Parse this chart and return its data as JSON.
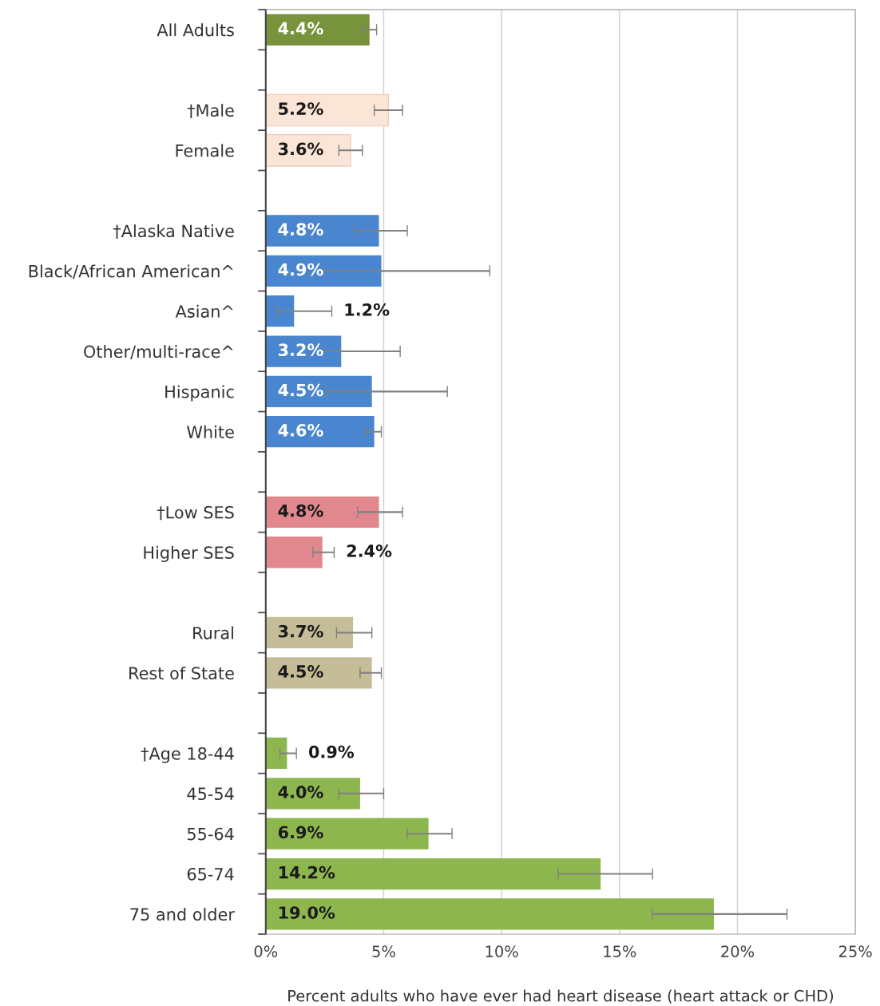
{
  "chart_data": {
    "type": "bar",
    "orientation": "horizontal",
    "xlabel": "Percent adults who have ever had heart disease (heart attack or CHD)",
    "categories": [
      "All Adults",
      null,
      "†Male",
      "Female",
      null,
      "†Alaska Native",
      "Black/African American^",
      "Asian^",
      "Other/multi-race^",
      "Hispanic",
      "White",
      null,
      "†Low SES",
      "Higher SES",
      null,
      "Rural",
      "Rest of State",
      null,
      "†Age 18-44",
      "45-54",
      "55-64",
      "65-74",
      "75 and older"
    ],
    "values": [
      4.4,
      null,
      5.2,
      3.6,
      null,
      4.8,
      4.9,
      1.2,
      3.2,
      4.5,
      4.6,
      null,
      4.8,
      2.4,
      null,
      3.7,
      4.5,
      null,
      0.9,
      4.0,
      6.9,
      14.2,
      19.0
    ],
    "value_labels": [
      "4.4%",
      null,
      "5.2%",
      "3.6%",
      null,
      "4.8%",
      "4.9%",
      "1.2%",
      "3.2%",
      "4.5%",
      "4.6%",
      null,
      "4.8%",
      "2.4%",
      null,
      "3.7%",
      "4.5%",
      null,
      "0.9%",
      "4.0%",
      "6.9%",
      "14.2%",
      "19.0%"
    ],
    "colors": [
      "#77933c",
      null,
      "#fbe5d6",
      "#fbe5d6",
      null,
      "#4a86d0",
      "#4a86d0",
      "#4a86d0",
      "#4a86d0",
      "#4a86d0",
      "#4a86d0",
      null,
      "#e0888e",
      "#e0888e",
      null,
      "#c4bd97",
      "#c4bd97",
      null,
      "#8db64f",
      "#8db64f",
      "#8db64f",
      "#8db64f",
      "#8db64f"
    ],
    "errors": [
      [
        4.1,
        4.7
      ],
      null,
      [
        4.6,
        5.8
      ],
      [
        3.1,
        4.1
      ],
      null,
      [
        3.8,
        6.0
      ],
      [
        2.4,
        9.5
      ],
      [
        0.5,
        2.8
      ],
      [
        2.4,
        5.7
      ],
      [
        2.6,
        7.7
      ],
      [
        4.2,
        4.9
      ],
      null,
      [
        3.9,
        5.8
      ],
      [
        2.0,
        2.9
      ],
      null,
      [
        3.0,
        4.5
      ],
      [
        4.0,
        4.9
      ],
      null,
      [
        0.6,
        1.3
      ],
      [
        3.1,
        5.0
      ],
      [
        6.0,
        7.9
      ],
      [
        12.4,
        16.4
      ],
      [
        16.4,
        22.1
      ]
    ],
    "xlim": [
      0,
      25
    ],
    "xticks": [
      {
        "value": 0,
        "label": "0%"
      },
      {
        "value": 5,
        "label": "5%"
      },
      {
        "value": 10,
        "label": "10%"
      },
      {
        "value": 15,
        "label": "15%"
      },
      {
        "value": 20,
        "label": "20%"
      },
      {
        "value": 25,
        "label": "25%"
      }
    ],
    "grid": "x"
  }
}
